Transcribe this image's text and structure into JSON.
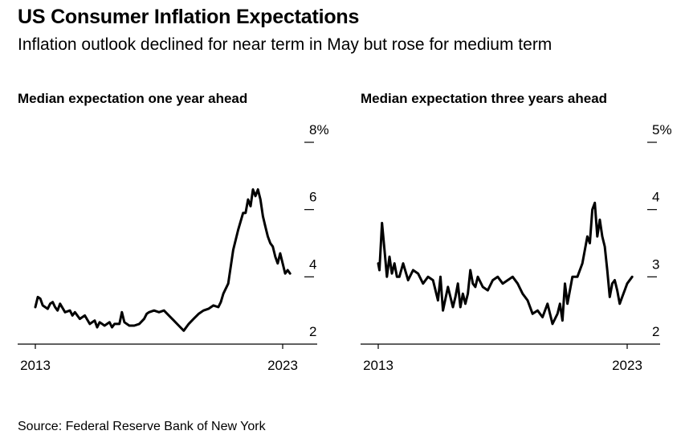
{
  "title": "US Consumer Inflation Expectations",
  "subtitle": "Inflation outlook declined for near term in May but rose for medium term",
  "source": "Source: Federal Reserve Bank of New York",
  "line_color": "#000000",
  "chart_data": [
    {
      "type": "line",
      "title": "Median expectation one year ahead",
      "ylim": [
        2,
        8
      ],
      "y_ticks": [
        8,
        6,
        4,
        2
      ],
      "y_tick_labels": [
        "8%",
        "6",
        "4",
        "2"
      ],
      "x_range": [
        2013.0,
        2023.4
      ],
      "x_ticks": [
        2013,
        2023
      ],
      "x_tick_labels": [
        "2013",
        "2023"
      ],
      "series": [
        {
          "x": [
            2013.0,
            2013.1,
            2013.2,
            2013.3,
            2013.4,
            2013.5,
            2013.6,
            2013.7,
            2013.8,
            2013.9,
            2014.0,
            2014.2,
            2014.4,
            2014.5,
            2014.6,
            2014.8,
            2015.0,
            2015.2,
            2015.4,
            2015.5,
            2015.6,
            2015.8,
            2016.0,
            2016.1,
            2016.2,
            2016.4,
            2016.5,
            2016.6,
            2016.8,
            2017.0,
            2017.2,
            2017.4,
            2017.5,
            2017.6,
            2017.8,
            2018.0,
            2018.2,
            2018.4,
            2018.6,
            2018.8,
            2019.0,
            2019.2,
            2019.4,
            2019.6,
            2019.8,
            2020.0,
            2020.2,
            2020.4,
            2020.5,
            2020.6,
            2020.8,
            2021.0,
            2021.2,
            2021.4,
            2021.5,
            2021.6,
            2021.7,
            2021.8,
            2021.9,
            2022.0,
            2022.1,
            2022.2,
            2022.3,
            2022.4,
            2022.5,
            2022.6,
            2022.7,
            2022.8,
            2022.9,
            2023.0,
            2023.1,
            2023.2,
            2023.3
          ],
          "y": [
            3.1,
            3.4,
            3.35,
            3.15,
            3.1,
            3.05,
            3.2,
            3.25,
            3.1,
            3.0,
            3.2,
            2.95,
            3.0,
            2.85,
            2.95,
            2.75,
            2.85,
            2.6,
            2.7,
            2.5,
            2.65,
            2.55,
            2.65,
            2.5,
            2.6,
            2.6,
            2.95,
            2.65,
            2.55,
            2.55,
            2.6,
            2.75,
            2.9,
            2.95,
            3.0,
            2.95,
            3.0,
            2.85,
            2.7,
            2.55,
            2.4,
            2.6,
            2.75,
            2.9,
            3.0,
            3.05,
            3.15,
            3.1,
            3.25,
            3.5,
            3.8,
            4.8,
            5.4,
            5.9,
            5.9,
            6.3,
            6.1,
            6.6,
            6.4,
            6.6,
            6.3,
            5.8,
            5.5,
            5.2,
            5.0,
            4.9,
            4.6,
            4.4,
            4.7,
            4.4,
            4.1,
            4.2,
            4.1
          ]
        }
      ]
    },
    {
      "type": "line",
      "title": "Median expectation three years ahead",
      "ylim": [
        2,
        5
      ],
      "y_ticks": [
        5,
        4,
        3,
        2
      ],
      "y_tick_labels": [
        "5%",
        "4",
        "3",
        "2"
      ],
      "x_range": [
        2013.0,
        2023.4
      ],
      "x_ticks": [
        2013,
        2023
      ],
      "x_tick_labels": [
        "2013",
        "2023"
      ],
      "series": [
        {
          "x": [
            2013.0,
            2013.05,
            2013.15,
            2013.25,
            2013.35,
            2013.45,
            2013.55,
            2013.65,
            2013.75,
            2013.85,
            2014.0,
            2014.2,
            2014.4,
            2014.6,
            2014.8,
            2015.0,
            2015.2,
            2015.4,
            2015.5,
            2015.6,
            2015.8,
            2016.0,
            2016.1,
            2016.2,
            2016.3,
            2016.4,
            2016.5,
            2016.6,
            2016.7,
            2016.8,
            2016.9,
            2017.0,
            2017.2,
            2017.4,
            2017.6,
            2017.8,
            2018.0,
            2018.2,
            2018.4,
            2018.6,
            2018.8,
            2019.0,
            2019.2,
            2019.4,
            2019.6,
            2019.8,
            2020.0,
            2020.2,
            2020.3,
            2020.4,
            2020.5,
            2020.6,
            2020.8,
            2021.0,
            2021.2,
            2021.4,
            2021.5,
            2021.6,
            2021.7,
            2021.8,
            2021.9,
            2022.0,
            2022.1,
            2022.2,
            2022.3,
            2022.4,
            2022.5,
            2022.6,
            2022.7,
            2022.8,
            2022.9,
            2023.0,
            2023.2
          ],
          "y": [
            3.2,
            3.1,
            3.8,
            3.4,
            3.0,
            3.3,
            3.05,
            3.2,
            3.0,
            3.0,
            3.2,
            2.95,
            3.1,
            3.05,
            2.9,
            3.0,
            2.95,
            2.65,
            3.0,
            2.5,
            2.85,
            2.55,
            2.7,
            2.9,
            2.55,
            2.75,
            2.6,
            2.75,
            3.1,
            2.9,
            2.85,
            3.0,
            2.85,
            2.8,
            2.95,
            3.0,
            2.9,
            2.95,
            3.0,
            2.9,
            2.75,
            2.65,
            2.45,
            2.5,
            2.4,
            2.6,
            2.3,
            2.45,
            2.6,
            2.35,
            2.9,
            2.6,
            3.0,
            3.0,
            3.2,
            3.6,
            3.5,
            4.0,
            4.1,
            3.6,
            3.85,
            3.6,
            3.45,
            3.1,
            2.7,
            2.9,
            2.95,
            2.8,
            2.6,
            2.7,
            2.8,
            2.9,
            3.0
          ]
        }
      ]
    }
  ]
}
